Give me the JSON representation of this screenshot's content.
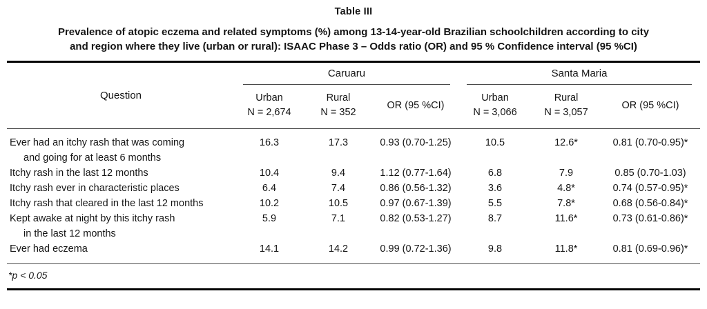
{
  "title": "Table III",
  "subtitle_line1": "Prevalence of atopic eczema and related symptoms (%) among 13-14-year-old Brazilian schoolchildren according to city",
  "subtitle_line2": "and region where they live (urban or rural): ISAAC Phase 3 – Odds ratio (OR) and 95 % Confidence interval (95 %CI)",
  "table": {
    "question_header": "Question",
    "groups": [
      {
        "label": "Caruaru",
        "columns": [
          {
            "line1": "Urban",
            "line2": "N = 2,674"
          },
          {
            "line1": "Rural",
            "line2": "N = 352"
          },
          {
            "line1": "OR (95 %CI)"
          }
        ]
      },
      {
        "label": "Santa Maria",
        "columns": [
          {
            "line1": "Urban",
            "line2": "N = 3,066"
          },
          {
            "line1": "Rural",
            "line2": "N = 3,057"
          },
          {
            "line1": "OR (95 %CI)"
          }
        ]
      }
    ],
    "rows": [
      {
        "question_line1": "Ever had an itchy rash that was coming",
        "question_line2": "and going for at least 6 months",
        "caruaru_urban": "16.3",
        "caruaru_rural": "17.3",
        "caruaru_or": "0.93 (0.70-1.25)",
        "sm_urban": "10.5",
        "sm_rural": "12.6*",
        "sm_or": "0.81 (0.70-0.95)*"
      },
      {
        "question_line1": "Itchy rash in the last 12 months",
        "caruaru_urban": "10.4",
        "caruaru_rural": "9.4",
        "caruaru_or": "1.12 (0.77-1.64)",
        "sm_urban": "6.8",
        "sm_rural": "7.9",
        "sm_or": "0.85 (0.70-1.03)"
      },
      {
        "question_line1": "Itchy rash ever in characteristic places",
        "caruaru_urban": "6.4",
        "caruaru_rural": "7.4",
        "caruaru_or": "0.86 (0.56-1.32)",
        "sm_urban": "3.6",
        "sm_rural": "4.8*",
        "sm_or": "0.74 (0.57-0.95)*"
      },
      {
        "question_line1": "Itchy rash that cleared in the last 12 months",
        "caruaru_urban": "10.2",
        "caruaru_rural": "10.5",
        "caruaru_or": "0.97 (0.67-1.39)",
        "sm_urban": "5.5",
        "sm_rural": "7.8*",
        "sm_or": "0.68 (0.56-0.84)*"
      },
      {
        "question_line1": "Kept awake at night by this itchy rash",
        "question_line2": "in the last 12 months",
        "caruaru_urban": "5.9",
        "caruaru_rural": "7.1",
        "caruaru_or": "0.82 (0.53-1.27)",
        "sm_urban": "8.7",
        "sm_rural": "11.6*",
        "sm_or": "0.73 (0.61-0.86)*"
      },
      {
        "question_line1": "Ever had eczema",
        "caruaru_urban": "14.1",
        "caruaru_rural": "14.2",
        "caruaru_or": "0.99 (0.72-1.36)",
        "sm_urban": "9.8",
        "sm_rural": "11.8*",
        "sm_or": "0.81 (0.69-0.96)*"
      }
    ],
    "footnote": "*p < 0.05"
  },
  "colors": {
    "text": "#151515",
    "rule_thick": "#000000",
    "rule_thin": "#4a4a4a",
    "background": "#ffffff"
  }
}
